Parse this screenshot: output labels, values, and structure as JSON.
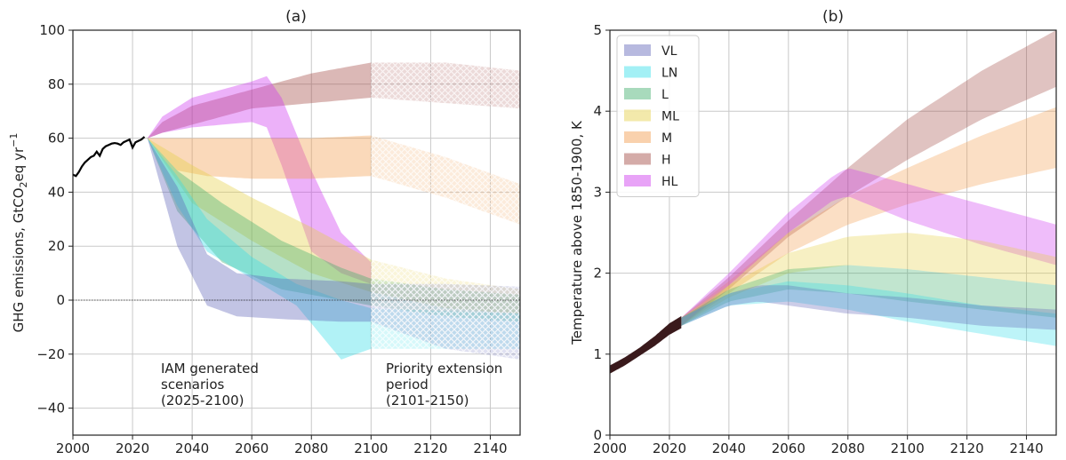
{
  "chart_data": [
    {
      "type": "area",
      "title": "(a)",
      "ylabel_main": "GHG emissions, GtCO",
      "ylabel_sub": "2",
      "ylabel_mid": "eq yr",
      "ylabel_sup": "−1",
      "xlim": [
        2000,
        2150
      ],
      "ylim": [
        -50,
        100
      ],
      "xticks": [
        "2000",
        "2020",
        "2040",
        "2060",
        "2080",
        "2100",
        "2120",
        "2140"
      ],
      "yticks": [
        "−40",
        "−20",
        "0",
        "20",
        "40",
        "60",
        "80",
        "100"
      ],
      "zero_line": true,
      "annotations": [
        {
          "lines": [
            "IAM generated",
            "scenarios",
            "(2025-2100)"
          ]
        },
        {
          "lines": [
            "Priority extension",
            "period",
            "(2101-2150)"
          ]
        }
      ],
      "historical": {
        "x": [
          2000,
          2001,
          2002,
          2003,
          2004,
          2005,
          2006,
          2007,
          2008,
          2009,
          2010,
          2011,
          2012,
          2013,
          2014,
          2015,
          2016,
          2017,
          2018,
          2019,
          2020,
          2021,
          2022,
          2023,
          2024
        ],
        "y": [
          46.5,
          46,
          47.5,
          49.5,
          51,
          52,
          53,
          53.5,
          55,
          53.5,
          56,
          57,
          57.5,
          58,
          58.2,
          58,
          57.5,
          58.5,
          59,
          59.5,
          56.5,
          58.5,
          59,
          59.5,
          60.5
        ]
      },
      "series": [
        {
          "name": "H",
          "color": "#a0453f",
          "x": [
            2025,
            2030,
            2040,
            2060,
            2080,
            2100,
            2125,
            2150
          ],
          "lower": [
            60,
            62,
            65,
            71,
            73,
            75,
            73,
            71
          ],
          "upper": [
            60,
            66,
            72,
            78,
            84,
            88,
            88,
            85
          ]
        },
        {
          "name": "HL",
          "color": "#cc33ee",
          "x": [
            2025,
            2030,
            2040,
            2050,
            2060,
            2065,
            2070,
            2080,
            2090,
            2100
          ],
          "lower": [
            60,
            62,
            64,
            65,
            66,
            64,
            50,
            18,
            10,
            6
          ],
          "upper": [
            60,
            68,
            75,
            78,
            81,
            83,
            75,
            48,
            25,
            14
          ]
        },
        {
          "name": "M",
          "color": "#f29a4a",
          "x": [
            2025,
            2035,
            2045,
            2060,
            2080,
            2100,
            2125,
            2150
          ],
          "lower": [
            60,
            48,
            46,
            45,
            45,
            46,
            38,
            28
          ],
          "upper": [
            60,
            60,
            60,
            60,
            60,
            61,
            53,
            43
          ]
        },
        {
          "name": "ML",
          "color": "#e5cf44",
          "x": [
            2025,
            2040,
            2060,
            2080,
            2100,
            2125,
            2150
          ],
          "lower": [
            60,
            36,
            22,
            10,
            3,
            -3,
            -5
          ],
          "upper": [
            60,
            50,
            38,
            27,
            15,
            8,
            4
          ]
        },
        {
          "name": "L",
          "color": "#3fae6b",
          "x": [
            2025,
            2035,
            2050,
            2070,
            2090,
            2100,
            2125,
            2150
          ],
          "lower": [
            60,
            33,
            14,
            4,
            0,
            -2,
            -6,
            -8
          ],
          "upper": [
            60,
            48,
            36,
            22,
            12,
            8,
            4,
            2
          ]
        },
        {
          "name": "LN",
          "color": "#33dde8",
          "x": [
            2025,
            2035,
            2045,
            2060,
            2075,
            2090,
            2100,
            2125,
            2150
          ],
          "lower": [
            60,
            35,
            18,
            8,
            -2,
            -22,
            -18,
            -18,
            -18
          ],
          "upper": [
            60,
            46,
            30,
            16,
            6,
            0,
            -3,
            -4,
            -5
          ]
        },
        {
          "name": "VL",
          "color": "#5f63b8",
          "x": [
            2025,
            2035,
            2045,
            2055,
            2070,
            2090,
            2100,
            2125,
            2150
          ],
          "lower": [
            60,
            20,
            -2,
            -6,
            -7,
            -8,
            -8,
            -18,
            -22
          ],
          "upper": [
            60,
            42,
            17,
            10,
            8,
            7,
            6,
            6,
            5
          ]
        }
      ]
    },
    {
      "type": "area",
      "title": "(b)",
      "ylabel": "Temperature above 1850-1900, K",
      "xlim": [
        2000,
        2150
      ],
      "ylim": [
        0,
        5
      ],
      "xticks": [
        "2000",
        "2020",
        "2040",
        "2060",
        "2080",
        "2100",
        "2120",
        "2140"
      ],
      "yticks": [
        "0",
        "1",
        "2",
        "3",
        "4",
        "5"
      ],
      "legend": {
        "placement": "upper-left",
        "entries": [
          "VL",
          "LN",
          "L",
          "ML",
          "M",
          "H",
          "HL"
        ]
      },
      "historical": {
        "x": [
          2000,
          2005,
          2010,
          2015,
          2020,
          2024
        ],
        "lower": [
          0.76,
          0.86,
          0.98,
          1.1,
          1.24,
          1.32
        ],
        "upper": [
          0.86,
          0.96,
          1.08,
          1.22,
          1.38,
          1.47
        ]
      },
      "series": [
        {
          "name": "H",
          "color": "#a0453f",
          "x": [
            2024,
            2040,
            2060,
            2080,
            2100,
            2125,
            2150
          ],
          "lower": [
            1.35,
            1.8,
            2.45,
            2.95,
            3.4,
            3.9,
            4.3
          ],
          "upper": [
            1.45,
            1.95,
            2.65,
            3.3,
            3.9,
            4.5,
            5.0
          ]
        },
        {
          "name": "M",
          "color": "#f29a4a",
          "x": [
            2024,
            2040,
            2060,
            2080,
            2100,
            2125,
            2150
          ],
          "lower": [
            1.35,
            1.75,
            2.25,
            2.6,
            2.85,
            3.1,
            3.3
          ],
          "upper": [
            1.45,
            1.9,
            2.5,
            2.95,
            3.3,
            3.7,
            4.05
          ]
        },
        {
          "name": "HL",
          "color": "#cc33ee",
          "x": [
            2024,
            2040,
            2060,
            2075,
            2080,
            2100,
            2125,
            2150
          ],
          "lower": [
            1.35,
            1.85,
            2.5,
            2.9,
            2.95,
            2.65,
            2.35,
            2.1
          ],
          "upper": [
            1.45,
            2.0,
            2.75,
            3.2,
            3.3,
            3.1,
            2.85,
            2.6
          ]
        },
        {
          "name": "ML",
          "color": "#e5cf44",
          "x": [
            2024,
            2040,
            2060,
            2080,
            2100,
            2125,
            2150
          ],
          "lower": [
            1.35,
            1.7,
            2.0,
            2.1,
            2.05,
            1.95,
            1.85
          ],
          "upper": [
            1.45,
            1.85,
            2.25,
            2.45,
            2.5,
            2.4,
            2.2
          ]
        },
        {
          "name": "L",
          "color": "#3fae6b",
          "x": [
            2024,
            2040,
            2060,
            2080,
            2100,
            2125,
            2150
          ],
          "lower": [
            1.35,
            1.65,
            1.8,
            1.75,
            1.65,
            1.55,
            1.45
          ],
          "upper": [
            1.45,
            1.8,
            2.05,
            2.1,
            2.05,
            1.95,
            1.85
          ]
        },
        {
          "name": "LN",
          "color": "#33dde8",
          "x": [
            2024,
            2040,
            2060,
            2080,
            2100,
            2125,
            2150
          ],
          "lower": [
            1.35,
            1.6,
            1.65,
            1.55,
            1.4,
            1.25,
            1.1
          ],
          "upper": [
            1.45,
            1.75,
            1.9,
            1.85,
            1.75,
            1.6,
            1.5
          ]
        },
        {
          "name": "VL",
          "color": "#5f63b8",
          "x": [
            2024,
            2040,
            2050,
            2060,
            2080,
            2100,
            2125,
            2150
          ],
          "lower": [
            1.35,
            1.6,
            1.65,
            1.6,
            1.5,
            1.45,
            1.35,
            1.3
          ],
          "upper": [
            1.45,
            1.75,
            1.85,
            1.85,
            1.75,
            1.7,
            1.6,
            1.55
          ]
        }
      ]
    }
  ]
}
